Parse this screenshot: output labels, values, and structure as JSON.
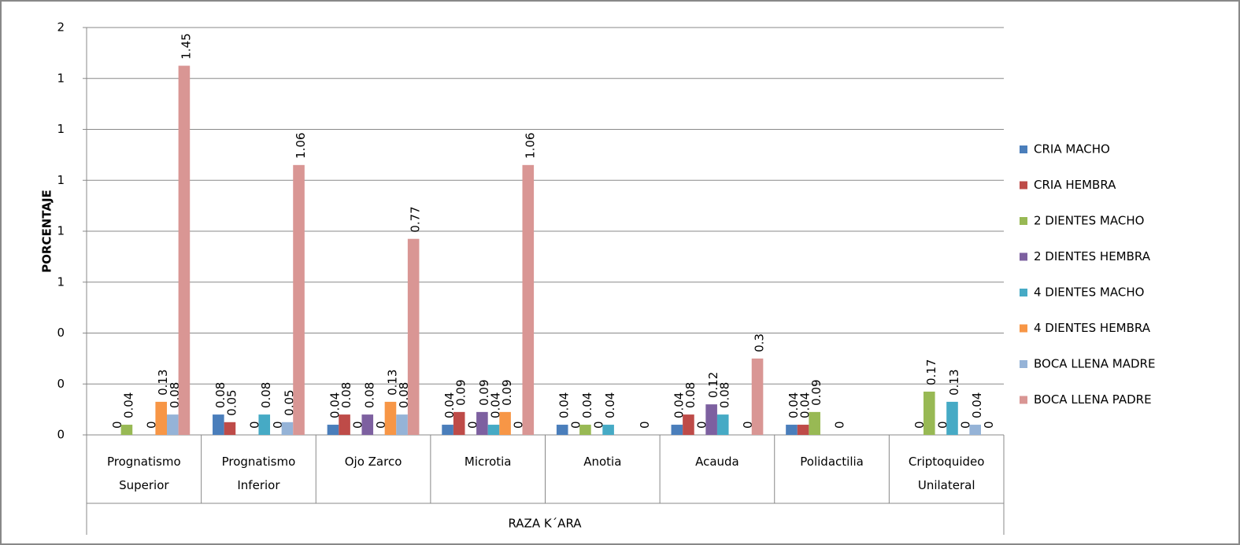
{
  "chart_data": {
    "type": "bar",
    "y_label": "PORCENTAJE",
    "x_label": "RAZA K´ARA",
    "categories": [
      "Prognatismo\nSuperior",
      "Prognatismo\nInferior",
      "Ojo Zarco",
      "Microtia",
      "Anotia",
      "Acauda",
      "Polidactilia",
      "Criptoquideo\nUnilateral"
    ],
    "series": [
      {
        "name": "CRIA MACHO",
        "color": "#4a7ebb",
        "values": [
          null,
          0.08,
          0.04,
          0.04,
          0.04,
          0.04,
          0.04,
          null
        ]
      },
      {
        "name": "CRIA HEMBRA",
        "color": "#be4b48",
        "values": [
          0,
          0.05,
          0.08,
          0.09,
          0,
          0.08,
          0.04,
          0
        ]
      },
      {
        "name": "2 DIENTES MACHO",
        "color": "#98b954",
        "values": [
          0.04,
          null,
          0,
          0,
          0.04,
          0,
          0.09,
          0.17
        ]
      },
      {
        "name": "2 DIENTES HEMBRA",
        "color": "#7d60a0",
        "values": [
          null,
          0,
          0.08,
          0.09,
          0,
          0.12,
          null,
          0
        ]
      },
      {
        "name": "4 DIENTES MACHO",
        "color": "#46aac5",
        "values": [
          0,
          0.08,
          0,
          0.04,
          0.04,
          0.08,
          0,
          0.13
        ]
      },
      {
        "name": "4 DIENTES HEMBRA",
        "color": "#f79646",
        "values": [
          0.13,
          0,
          0.13,
          0.09,
          null,
          null,
          null,
          0
        ]
      },
      {
        "name": "BOCA LLENA MADRE",
        "color": "#95b3d7",
        "values": [
          0.08,
          0.05,
          0.08,
          0,
          null,
          0,
          null,
          0.04
        ]
      },
      {
        "name": "BOCA LLENA PADRE",
        "color": "#d99694",
        "values": [
          1.45,
          1.06,
          0.77,
          1.06,
          0,
          0.3,
          null,
          0
        ]
      }
    ],
    "ylim": [
      0,
      1.6
    ],
    "yticks": [
      0,
      {
        "value": 0.2,
        "label": "0"
      },
      {
        "value": 0.4,
        "label": "0"
      },
      {
        "value": 0.6,
        "label": "1"
      },
      {
        "value": 0.8,
        "label": "1"
      },
      {
        "value": 1.0,
        "label": "1"
      },
      {
        "value": 1.2,
        "label": "1"
      },
      {
        "value": 1.4,
        "label": "1"
      },
      {
        "value": 1.6,
        "label": "2"
      }
    ],
    "grid": true,
    "legend": "right"
  }
}
